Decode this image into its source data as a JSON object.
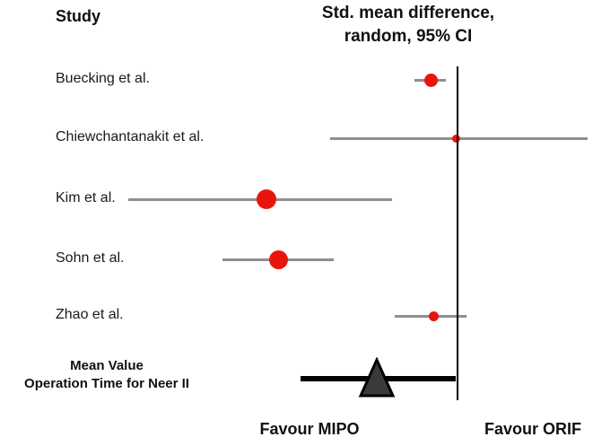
{
  "header": {
    "study_col": "Study",
    "title_line1": "Std. mean difference,",
    "title_line2": "random, 95% CI"
  },
  "footer": {
    "left_label": "Favour MIPO",
    "right_label": "Favour ORIF"
  },
  "colors": {
    "marker": "#e9150d",
    "ci_line": "#8f8f8f",
    "null_line": "#000000",
    "pooled_fill": "#3a3a3a"
  },
  "chart_data": {
    "type": "scatter",
    "plot_kind": "forest",
    "title": "Std. mean difference, random, 95% CI",
    "xlabel": "",
    "ylabel": "Study",
    "x_axis": {
      "min": -3.7,
      "max": 1.5,
      "null_line": 0,
      "tick_labels_visible": false
    },
    "grid": false,
    "legend": false,
    "studies": [
      {
        "label": "Buecking et al.",
        "smd": -0.3,
        "ci_low": -0.48,
        "ci_high": -0.13,
        "marker": "circle",
        "marker_size": 15
      },
      {
        "label": "Chiewchantanakit et al.",
        "smd": -0.02,
        "ci_low": -1.42,
        "ci_high": 1.45,
        "marker": "circle",
        "marker_size": 9
      },
      {
        "label": "Kim et al.",
        "smd": -2.13,
        "ci_low": -3.67,
        "ci_high": -0.73,
        "marker": "circle",
        "marker_size": 22
      },
      {
        "label": "Sohn et al.",
        "smd": -2.0,
        "ci_low": -2.62,
        "ci_high": -1.38,
        "marker": "circle",
        "marker_size": 21
      },
      {
        "label": "Zhao et al.",
        "smd": -0.27,
        "ci_low": -0.7,
        "ci_high": 0.1,
        "marker": "circle",
        "marker_size": 11
      }
    ],
    "pooled": {
      "label_line1": "Mean Value",
      "label_line2": "Operation Time for Neer II",
      "smd": -0.9,
      "ci_low": -1.75,
      "ci_high": -0.02,
      "marker": "triangle"
    },
    "footer_labels": {
      "left": "Favour MIPO",
      "right": "Favour ORIF"
    }
  }
}
